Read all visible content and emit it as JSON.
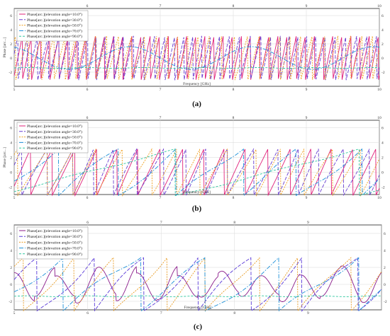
{
  "chart_data": [
    {
      "type": "line",
      "caption": "(a)",
      "xlabel": "Frequency [GHz]",
      "ylabel": "Phase [arc...]",
      "xlim": [
        5,
        10
      ],
      "ylim": [
        -4,
        7
      ],
      "top_ticks": [
        "6",
        "7",
        "8",
        "9",
        "10"
      ],
      "bottom_ticks": [
        "5",
        "6",
        "7",
        "8",
        "9",
        "10"
      ],
      "left_ticks": [
        "6",
        "4",
        "2",
        "0",
        "-2"
      ],
      "right_ticks": [
        "6",
        "4",
        "2",
        "0",
        "-2"
      ],
      "legend_position": "top-left",
      "series": [
        {
          "name": "Phase[arc.](elevation angle=10.0°)",
          "color": "#e0207a",
          "dash": "solid",
          "kind": "saw",
          "cycles": 40,
          "offset": 0.1,
          "wobble": 0.0
        },
        {
          "name": "Phase[arc.](elevation angle=30.0°)",
          "color": "#6a3fd0",
          "dash": "5,2",
          "kind": "saw",
          "cycles": 38,
          "offset": 0.45,
          "wobble": 0.15
        },
        {
          "name": "Phase[arc.](elevation angle=50.0°)",
          "color": "#f0a020",
          "dash": "2,1.5",
          "kind": "saw",
          "cycles": 32,
          "offset": 0.7,
          "wobble": 0.2
        },
        {
          "name": "Phase[arc.](elevation angle=70.0°)",
          "color": "#1a8fd8",
          "dash": "6,2,1.5,2",
          "kind": "wave",
          "cycles": 3,
          "offset": 0.3,
          "wobble": 0.0
        },
        {
          "name": "Phase[arc.](elevation angle=90.0°)",
          "color": "#30c8a0",
          "dash": "3,2",
          "kind": "flat",
          "cycles": 0,
          "offset": 0.0,
          "wobble": 0.0
        }
      ]
    },
    {
      "type": "line",
      "caption": "(b)",
      "xlabel": "Frequency [GHz]",
      "ylabel": "Phase [arc...]",
      "xlim": [
        5,
        10
      ],
      "ylim": [
        -3,
        7
      ],
      "top_ticks": [
        "6",
        "7",
        "8",
        "9",
        "10"
      ],
      "bottom_ticks": [
        "5",
        "6",
        "7",
        "8",
        "9",
        "10"
      ],
      "left_ticks": [
        "6",
        "4",
        "2",
        "0",
        "-2"
      ],
      "right_ticks": [
        "6",
        "4",
        "2",
        "0",
        "-2"
      ],
      "legend_position": "top-left",
      "series": [
        {
          "name": "Phase[arc.](elevation angle=10.0°)",
          "color": "#e0207a",
          "dash": "solid",
          "kind": "saw",
          "cycles": 17,
          "offset": 0.2,
          "wobble": 0.1
        },
        {
          "name": "Phase[arc.](elevation angle=30.0°)",
          "color": "#6a3fd0",
          "dash": "5,2",
          "kind": "saw",
          "cycles": 16,
          "offset": 0.55,
          "wobble": 0.25
        },
        {
          "name": "Phase[arc.](elevation angle=50.0°)",
          "color": "#f0a020",
          "dash": "2,1.5",
          "kind": "saw",
          "cycles": 14,
          "offset": 0.8,
          "wobble": 0.2
        },
        {
          "name": "Phase[arc.](elevation angle=70.0°)",
          "color": "#1a8fd8",
          "dash": "6,2,1.5,2",
          "kind": "saw",
          "cycles": 6,
          "offset": 0.3,
          "wobble": 0.4
        },
        {
          "name": "Phase[arc.](elevation angle=90.0°)",
          "color": "#30c8a0",
          "dash": "3,2",
          "kind": "saw",
          "cycles": 2,
          "offset": 0.1,
          "wobble": 0.3
        }
      ]
    },
    {
      "type": "line",
      "caption": "(c)",
      "xlabel": "Frequency [GHz]",
      "ylabel": "",
      "xlim": [
        5,
        10
      ],
      "ylim": [
        -3,
        7
      ],
      "top_ticks": [
        "6",
        "7",
        "8",
        "9"
      ],
      "bottom_ticks": [
        "5",
        "6",
        "7",
        "8",
        "9"
      ],
      "left_ticks": [
        "6",
        "4",
        "2",
        "0",
        "-2"
      ],
      "right_ticks": [
        "6",
        "4",
        "2",
        "0",
        "-2"
      ],
      "legend_position": "top-left",
      "series": [
        {
          "name": "Phase[arc.](elevation angle=10.0°)",
          "color": "#8a1a8a",
          "dash": "solid",
          "kind": "wave",
          "cycles": 9,
          "offset": 0.2,
          "wobble": 0.6
        },
        {
          "name": "Phase[arc.](elevation angle=30.0°)",
          "color": "#5a3ad8",
          "dash": "5,2",
          "kind": "saw",
          "cycles": 7,
          "offset": 0.5,
          "wobble": 0.5
        },
        {
          "name": "Phase[arc.](elevation angle=50.0°)",
          "color": "#e89a20",
          "dash": "2,1.5",
          "kind": "saw",
          "cycles": 8,
          "offset": 0.75,
          "wobble": 0.4
        },
        {
          "name": "Phase[arc.](elevation angle=70.0°)",
          "color": "#1a8fd8",
          "dash": "6,2,1.5,2",
          "kind": "saw",
          "cycles": 5,
          "offset": 0.35,
          "wobble": 0.5
        },
        {
          "name": "Phase[arc.](elevation angle=90.0°)",
          "color": "#30c8a0",
          "dash": "3,2",
          "kind": "flat",
          "cycles": 0,
          "offset": 0.0,
          "wobble": 0.0
        }
      ]
    }
  ]
}
